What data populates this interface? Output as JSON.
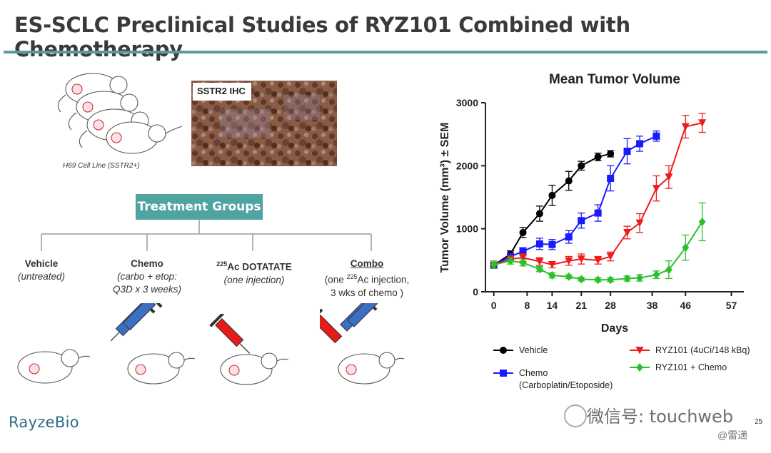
{
  "slide": {
    "title": "ES-SCLC Preclinical Studies of RYZ101 Combined with Chemotherapy",
    "cell_line": "H69 Cell Line (SSTR2+)",
    "ihc_label": "SSTR2 IHC",
    "treatment_groups": "Treatment Groups",
    "groups": [
      {
        "name": "Vehicle",
        "desc": [
          "(untreated)"
        ]
      },
      {
        "name": "Chemo",
        "desc": [
          "(carbo + etop:",
          "Q3D x 3 weeks)"
        ]
      },
      {
        "name_sup": "225",
        "name": "Ac DOTATATE",
        "desc": [
          "(one injection)"
        ]
      },
      {
        "name": "Combo",
        "desc_pre": "(one ",
        "desc_sup": "225",
        "desc_post": "Ac injection,",
        "desc2": "3 wks of chemo )"
      }
    ],
    "logo": "RayzeBio",
    "page_number": "25",
    "watermark": "微信号: touchweb",
    "watermark_sub": "@雷递"
  },
  "colors": {
    "teal": "#4fa3a0",
    "rule": "#5a9aa0",
    "vehicle": "#000000",
    "chemo": "#1a1aff",
    "ryz101": "#ee1c1c",
    "combo": "#2bc02b",
    "syringe_blue": "#3a6fc4",
    "syringe_red": "#e31b1b"
  },
  "chart_data": {
    "type": "line",
    "title": "Mean Tumor Volume",
    "xlabel": "Days",
    "ylabel": "Tumor Volume (mm³) ± SEM",
    "xlim": [
      -2,
      60
    ],
    "ylim": [
      0,
      3000
    ],
    "xticks": [
      0,
      8,
      14,
      21,
      28,
      38,
      46,
      57
    ],
    "xtick_labels": [
      "0",
      "8",
      "14",
      "21",
      "28",
      "38",
      "46",
      "57"
    ],
    "yticks": [
      0,
      1000,
      2000,
      3000
    ],
    "ytick_labels": [
      "0",
      "1000",
      "2000",
      "3000"
    ],
    "series": [
      {
        "name": "Vehicle",
        "marker": "circle",
        "color": "#000000",
        "x": [
          0,
          4,
          7,
          11,
          14,
          18,
          21,
          25,
          28
        ],
        "y": [
          420,
          600,
          940,
          1240,
          1530,
          1760,
          2000,
          2140,
          2190
        ],
        "err": [
          40,
          50,
          80,
          120,
          160,
          150,
          70,
          60,
          50
        ]
      },
      {
        "name": "Chemo\n(Carboplatin/Etoposide)",
        "marker": "square",
        "color": "#1a1aff",
        "x": [
          0,
          4,
          7,
          11,
          14,
          18,
          21,
          25,
          28,
          32,
          35,
          39
        ],
        "y": [
          420,
          560,
          640,
          760,
          750,
          870,
          1130,
          1250,
          1800,
          2230,
          2350,
          2470
        ],
        "err": [
          40,
          50,
          60,
          90,
          80,
          100,
          120,
          130,
          200,
          200,
          120,
          80
        ]
      },
      {
        "name": "RYZ101 (4uCi/148 kBq)",
        "marker": "triangle-down",
        "color": "#ee1c1c",
        "x": [
          0,
          4,
          7,
          11,
          14,
          18,
          21,
          25,
          28,
          32,
          35,
          39,
          42,
          46,
          50
        ],
        "y": [
          420,
          520,
          540,
          480,
          430,
          490,
          520,
          500,
          560,
          940,
          1090,
          1640,
          1820,
          2620,
          2680
        ],
        "err": [
          40,
          40,
          60,
          60,
          50,
          70,
          80,
          60,
          70,
          100,
          150,
          200,
          180,
          180,
          150
        ]
      },
      {
        "name": "RYZ101 + Chemo",
        "marker": "diamond",
        "color": "#2bc02b",
        "x": [
          0,
          4,
          7,
          11,
          14,
          18,
          21,
          25,
          28,
          32,
          35,
          39,
          42,
          46,
          50
        ],
        "y": [
          430,
          490,
          460,
          360,
          260,
          240,
          200,
          190,
          190,
          210,
          220,
          270,
          350,
          700,
          1110
        ],
        "err": [
          60,
          50,
          50,
          40,
          40,
          30,
          30,
          30,
          30,
          40,
          50,
          60,
          140,
          200,
          300
        ]
      }
    ],
    "legend": {
      "placement": "bottom",
      "entries": [
        "Vehicle",
        "Chemo",
        "(Carboplatin/Etoposide)",
        "RYZ101 (4uCi/148 kBq)",
        "RYZ101 + Chemo"
      ]
    }
  }
}
